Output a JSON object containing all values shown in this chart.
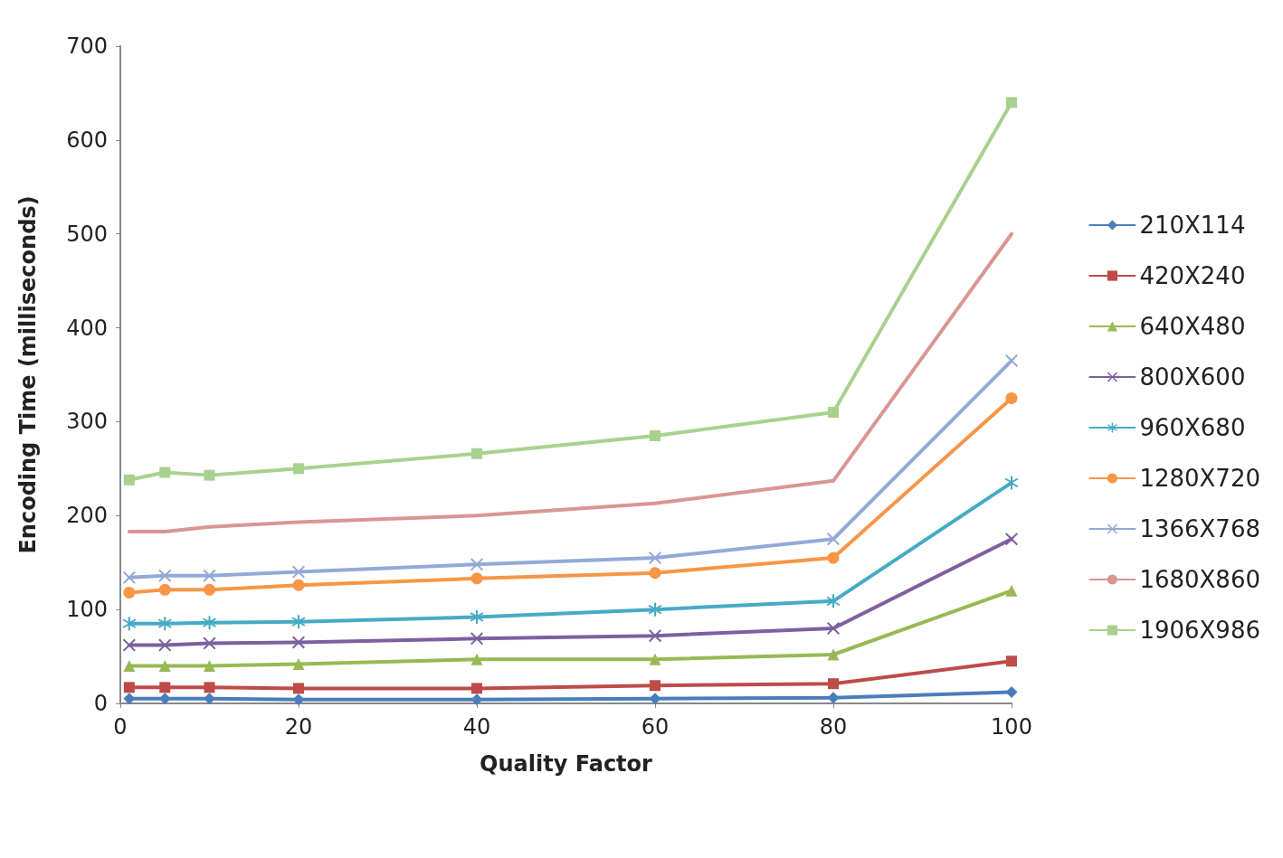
{
  "chart_data": {
    "type": "line",
    "xlabel": "Quality Factor",
    "ylabel": "Encoding Time (milliseconds)",
    "x": [
      1,
      5,
      10,
      20,
      40,
      60,
      80,
      100
    ],
    "xlim": [
      0,
      100
    ],
    "xticks": [
      0,
      20,
      40,
      60,
      80,
      100
    ],
    "ylim": [
      0,
      700
    ],
    "yticks": [
      0,
      100,
      200,
      300,
      400,
      500,
      600,
      700
    ],
    "grid": false,
    "legend": "right",
    "series": [
      {
        "name": "210X114",
        "color": "#4a7ebb",
        "marker": "diamond",
        "values": [
          5,
          5,
          5,
          4,
          4,
          5,
          6,
          12
        ]
      },
      {
        "name": "420X240",
        "color": "#be4b48",
        "marker": "square",
        "values": [
          17,
          17,
          17,
          16,
          16,
          19,
          21,
          45
        ]
      },
      {
        "name": "640X480",
        "color": "#98b954",
        "marker": "triangle",
        "values": [
          40,
          40,
          40,
          42,
          47,
          47,
          52,
          120
        ]
      },
      {
        "name": "800X600",
        "color": "#7d60a0",
        "marker": "cross",
        "values": [
          62,
          62,
          64,
          65,
          69,
          72,
          80,
          175
        ]
      },
      {
        "name": "960X680",
        "color": "#46aac5",
        "marker": "star",
        "values": [
          85,
          85,
          86,
          87,
          92,
          100,
          109,
          235
        ]
      },
      {
        "name": "1280X720",
        "color": "#f79646",
        "marker": "circle",
        "values": [
          118,
          121,
          121,
          126,
          133,
          139,
          155,
          325
        ]
      },
      {
        "name": "1366X768",
        "color": "#93a9d7",
        "marker": "cross",
        "values": [
          134,
          136,
          136,
          140,
          148,
          155,
          175,
          365
        ]
      },
      {
        "name": "1680X860",
        "color": "#d99694",
        "marker": "none",
        "values": [
          183,
          183,
          188,
          193,
          200,
          213,
          237,
          500
        ]
      },
      {
        "name": "1906X986",
        "color": "#a9d18e",
        "marker": "square",
        "values": [
          238,
          246,
          243,
          250,
          266,
          285,
          310,
          640
        ]
      }
    ]
  }
}
